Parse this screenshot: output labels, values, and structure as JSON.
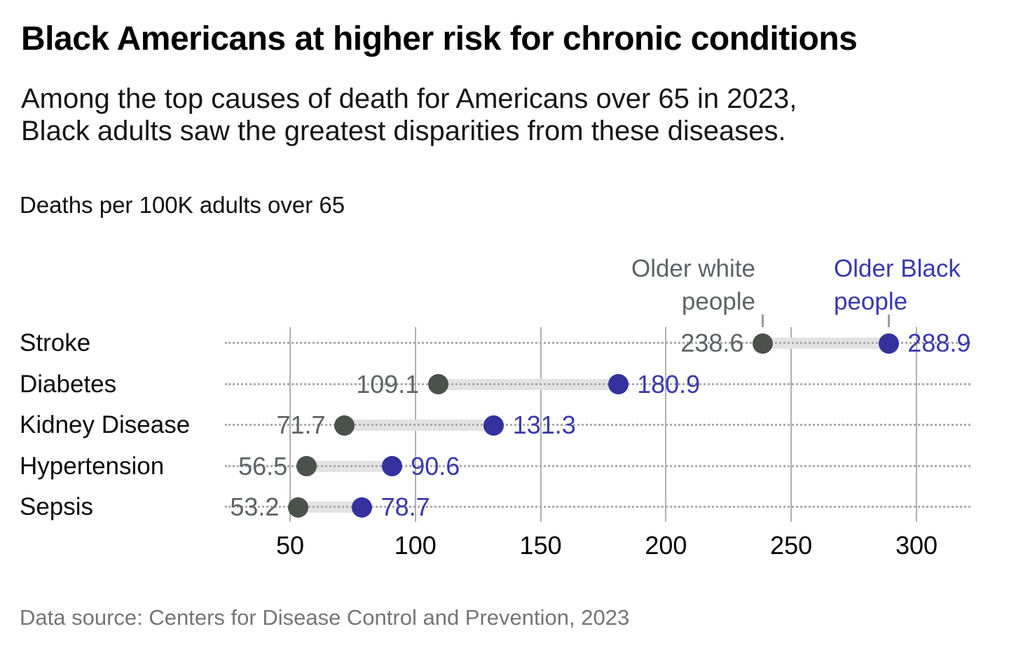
{
  "colors": {
    "white_dot": "#4b514c",
    "white_text": "#5e6366",
    "black_dot": "#33329e",
    "black_text": "#3a38ae",
    "grid": "#b0b0b0",
    "leader": "#ababab",
    "connector": "#e3e3e3",
    "tick_pointer": "#9b9b9b",
    "source_text": "#757575"
  },
  "chart_data": {
    "type": "scatter",
    "variant": "dumbbell",
    "title": "Black Americans at higher risk for chronic conditions",
    "subtitle": "Among the top causes of death for Americans over 65 in 2023, Black adults saw the greatest disparities from these diseases.",
    "subtitle_lines": [
      "Among the top causes of death for Americans over 65 in 2023,",
      "Black adults saw the greatest disparities from these diseases."
    ],
    "xlabel": "Deaths per 100K adults over 65",
    "ylabel": "",
    "categories": [
      "Stroke",
      "Diabetes",
      "Kidney Disease",
      "Hypertension",
      "Sepsis"
    ],
    "series": [
      {
        "name": "Older white people",
        "values": [
          238.6,
          109.1,
          71.7,
          56.5,
          53.2
        ]
      },
      {
        "name": "Older Black people",
        "values": [
          288.9,
          180.9,
          131.3,
          90.6,
          78.7
        ]
      }
    ],
    "x_ticks": [
      50,
      100,
      150,
      200,
      250,
      300
    ],
    "xlim": [
      25,
      320
    ],
    "grid": "vertical-only",
    "legend": {
      "position": "top-right-above-first-row",
      "white": {
        "lines": [
          "Older white",
          "people"
        ]
      },
      "black": {
        "lines": [
          "Older Black",
          "people"
        ]
      }
    },
    "source": "Data source: Centers for Disease Control and Prevention, 2023"
  }
}
